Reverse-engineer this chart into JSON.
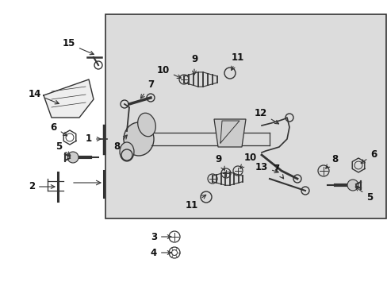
{
  "bg_color": "#ffffff",
  "box_bg": "#dcdcdc",
  "line_color": "#333333",
  "text_color": "#111111",
  "font_size": 8.5
}
